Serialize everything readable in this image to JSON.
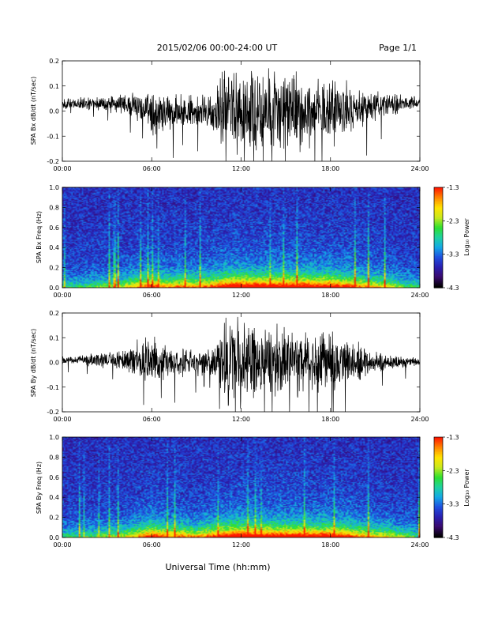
{
  "header": {
    "title": "2015/02/06  00:00-24:00 UT",
    "page": "Page 1/1"
  },
  "chart_data": [
    {
      "type": "line",
      "ylabel": "SPA Bx dB/dt (nT/sec)",
      "ylim": [
        -0.2,
        0.2
      ],
      "yticks": [
        "-0.2",
        "-0.1",
        "0.0",
        "0.1",
        "0.2"
      ],
      "xlim_hours": [
        0,
        24
      ],
      "xticks": [
        "00:00",
        "06:00",
        "12:00",
        "18:00",
        "24:00"
      ],
      "x": [
        0,
        1,
        2,
        3,
        4,
        5,
        6,
        7,
        8,
        9,
        10,
        11,
        12,
        13,
        14,
        15,
        16,
        17,
        18,
        19,
        20,
        21,
        22,
        23,
        24
      ],
      "series": [
        {
          "envelope": [
            0.025,
            0.03,
            0.03,
            0.04,
            0.045,
            0.07,
            0.12,
            0.09,
            0.09,
            0.08,
            0.11,
            0.22,
            0.22,
            0.22,
            0.22,
            0.2,
            0.18,
            0.16,
            0.17,
            0.15,
            0.1,
            0.08,
            0.06,
            0.04,
            0.03
          ],
          "baseline": [
            0.03,
            0.03,
            0.03,
            0.03,
            0.03,
            0.02,
            0.0,
            0.0,
            0.0,
            0.0,
            0.0,
            0.0,
            0.0,
            0.0,
            0.0,
            0.0,
            0.0,
            0.0,
            0.0,
            0.0,
            0.01,
            0.02,
            0.03,
            0.03,
            0.03
          ]
        }
      ]
    },
    {
      "type": "heatmap",
      "ylabel": "SPA Bx Freq (Hz)",
      "ylim": [
        0.0,
        1.0
      ],
      "yticks": [
        "0.0",
        "0.2",
        "0.4",
        "0.6",
        "0.8",
        "1.0"
      ],
      "xlim_hours": [
        0,
        24
      ],
      "xticks": [
        "00:00",
        "06:00",
        "12:00",
        "18:00",
        "24:00"
      ],
      "colorbar": {
        "label": "Log₁₀ Power",
        "range": [
          -4.3,
          -1.3
        ],
        "ticks": [
          "-1.3",
          "-2.3",
          "-3.3",
          "-4.3"
        ]
      },
      "x": [
        0,
        1,
        2,
        3,
        4,
        5,
        6,
        7,
        8,
        9,
        10,
        11,
        12,
        13,
        14,
        15,
        16,
        17,
        18,
        19,
        20,
        21,
        22,
        23,
        24
      ],
      "activity": [
        0.3,
        0.3,
        0.35,
        0.4,
        0.45,
        0.6,
        0.75,
        0.6,
        0.65,
        0.6,
        0.7,
        0.85,
        0.9,
        0.85,
        0.85,
        0.85,
        0.85,
        0.8,
        0.85,
        0.75,
        0.65,
        0.55,
        0.5,
        0.35,
        0.3
      ]
    },
    {
      "type": "line",
      "ylabel": "SPA By dB/dt (nT/sec)",
      "ylim": [
        -0.2,
        0.2
      ],
      "yticks": [
        "-0.2",
        "-0.1",
        "0.0",
        "0.1",
        "0.2"
      ],
      "xlim_hours": [
        0,
        24
      ],
      "xticks": [
        "00:00",
        "06:00",
        "12:00",
        "18:00",
        "24:00"
      ],
      "x": [
        0,
        1,
        2,
        3,
        4,
        5,
        6,
        7,
        8,
        9,
        10,
        11,
        12,
        13,
        14,
        15,
        16,
        17,
        18,
        19,
        20,
        21,
        22,
        23,
        24
      ],
      "series": [
        {
          "envelope": [
            0.02,
            0.025,
            0.03,
            0.04,
            0.05,
            0.09,
            0.12,
            0.08,
            0.07,
            0.06,
            0.07,
            0.2,
            0.2,
            0.2,
            0.18,
            0.16,
            0.15,
            0.14,
            0.16,
            0.13,
            0.09,
            0.06,
            0.04,
            0.03,
            0.025
          ],
          "baseline": [
            0.01,
            0.01,
            0.01,
            0.01,
            0.01,
            0.01,
            0.0,
            0.0,
            0.0,
            0.0,
            0.0,
            0.0,
            0.0,
            0.0,
            0.0,
            0.0,
            0.0,
            0.0,
            0.0,
            0.0,
            0.0,
            0.0,
            0.0,
            0.0,
            0.0
          ]
        }
      ]
    },
    {
      "type": "heatmap",
      "ylabel": "SPA By Freq (Hz)",
      "ylim": [
        0.0,
        1.0
      ],
      "yticks": [
        "0.0",
        "0.2",
        "0.4",
        "0.6",
        "0.8",
        "1.0"
      ],
      "xlim_hours": [
        0,
        24
      ],
      "xticks": [
        "00:00",
        "06:00",
        "12:00",
        "18:00",
        "24:00"
      ],
      "colorbar": {
        "label": "Log₁₀ Power",
        "range": [
          -4.3,
          -1.3
        ],
        "ticks": [
          "-1.3",
          "-2.3",
          "-3.3",
          "-4.3"
        ]
      },
      "x": [
        0,
        1,
        2,
        3,
        4,
        5,
        6,
        7,
        8,
        9,
        10,
        11,
        12,
        13,
        14,
        15,
        16,
        17,
        18,
        19,
        20,
        21,
        22,
        23,
        24
      ],
      "activity": [
        0.3,
        0.3,
        0.35,
        0.4,
        0.45,
        0.6,
        0.8,
        0.65,
        0.65,
        0.6,
        0.7,
        0.85,
        0.9,
        0.85,
        0.85,
        0.85,
        0.85,
        0.8,
        0.85,
        0.75,
        0.65,
        0.55,
        0.5,
        0.4,
        0.3
      ]
    }
  ],
  "xaxis_label": "Universal Time (hh:mm)",
  "colors": {
    "background": "#ffffff",
    "trace": "#000000",
    "colormap": [
      "#000000",
      "#3a0a6e",
      "#2a1fb0",
      "#1f4fe0",
      "#14a8e6",
      "#1fd1a0",
      "#2ee02e",
      "#c8e81e",
      "#ffe400",
      "#ff8a00",
      "#ff1a00"
    ]
  }
}
